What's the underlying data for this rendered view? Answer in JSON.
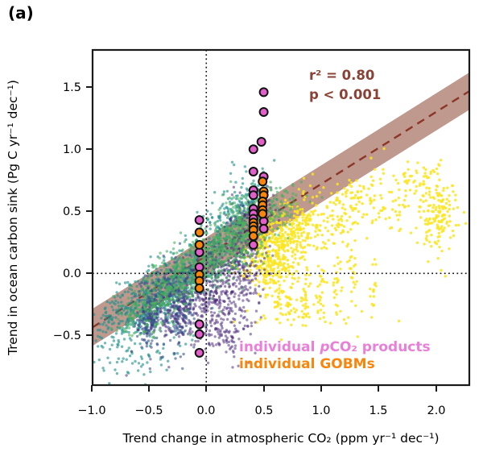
{
  "panel_label": "(a)",
  "chart_data": {
    "type": "scatter",
    "title": "",
    "xlabel": "Trend change in atmospheric CO₂ (ppm yr⁻¹ dec⁻¹)",
    "ylabel": "Trend in ocean carbon sink (Pg C yr⁻¹ dec⁻¹)",
    "xlim": [
      -0.99,
      2.29
    ],
    "ylim": [
      -0.9,
      1.8
    ],
    "xticks": [
      -1.0,
      -0.5,
      0.0,
      0.5,
      1.0,
      1.5,
      2.0
    ],
    "xtick_labels": [
      "−1.0",
      "−0.5",
      "0.0",
      "0.5",
      "1.0",
      "1.5",
      "2.0"
    ],
    "yticks": [
      1.5,
      1.0,
      0.5,
      0.0,
      -0.5
    ],
    "ytick_labels": [
      "1.5",
      "1.0",
      "0.5",
      "0.0",
      "−0.5"
    ],
    "grid": false,
    "zero_lines": {
      "x": 0,
      "y": 0,
      "style": "dotted",
      "color": "#141414"
    },
    "regression": {
      "slope": 0.58,
      "intercept": 0.14,
      "band_halfwidth": 0.15,
      "r2_label": "r² = 0.80",
      "p_label": "p < 0.001",
      "line_color": "#8b3626",
      "band_color": "#8b4332",
      "band_opacity": 0.55,
      "text_color": "#8b4135"
    },
    "ensembles": [
      {
        "name": "ensemble-yellow",
        "color": "#fce51f",
        "opacity": 0.85,
        "dot_radius": 1.7,
        "blobs": [
          {
            "cx": 0.55,
            "cy": 0.16,
            "sx": 0.12,
            "sy": 0.16,
            "slope": 0.2,
            "n": 360
          },
          {
            "cx": 0.8,
            "cy": 0.33,
            "sx": 0.12,
            "sy": 0.13,
            "slope": 0.2,
            "n": 170
          },
          {
            "cx": 1.12,
            "cy": 0.46,
            "sx": 0.18,
            "sy": 0.14,
            "slope": 0,
            "n": 110
          },
          {
            "cx": 1.55,
            "cy": 0.58,
            "sx": 0.2,
            "sy": 0.14,
            "slope": 0,
            "n": 90
          },
          {
            "cx": 2.03,
            "cy": 0.48,
            "sx": 0.08,
            "sy": 0.18,
            "slope": 0,
            "n": 150
          },
          {
            "cx": 1.85,
            "cy": 0.76,
            "sx": 0.12,
            "sy": 0.07,
            "slope": 0,
            "n": 40
          },
          {
            "cx": 0.63,
            "cy": -0.16,
            "sx": 0.02,
            "sy": 0.16,
            "slope": 0,
            "n": 35
          },
          {
            "cx": 0.73,
            "cy": -0.2,
            "sx": 0.02,
            "sy": 0.14,
            "slope": 0,
            "n": 28
          },
          {
            "cx": 0.86,
            "cy": -0.12,
            "sx": 0.02,
            "sy": 0.18,
            "slope": 0,
            "n": 30
          },
          {
            "cx": 1.0,
            "cy": -0.16,
            "sx": 0.02,
            "sy": 0.16,
            "slope": 0,
            "n": 26
          },
          {
            "cx": 1.14,
            "cy": -0.1,
            "sx": 0.02,
            "sy": 0.14,
            "slope": 0,
            "n": 22
          },
          {
            "cx": 1.28,
            "cy": -0.06,
            "sx": 0.02,
            "sy": 0.14,
            "slope": 0,
            "n": 20
          },
          {
            "cx": 1.46,
            "cy": -0.12,
            "sx": 0.02,
            "sy": 0.13,
            "slope": 0,
            "n": 16
          },
          {
            "cx": 0.95,
            "cy": -0.34,
            "sx": 0.28,
            "sy": 0.08,
            "slope": 0,
            "n": 30
          }
        ]
      },
      {
        "name": "ensemble-teal",
        "color": "#21918c",
        "opacity": 0.62,
        "dot_radius": 1.7,
        "blobs": [
          {
            "cx": -0.62,
            "cy": -0.3,
            "sx": 0.2,
            "sy": 0.13,
            "slope": 0.5,
            "n": 360
          },
          {
            "cx": -0.2,
            "cy": -0.06,
            "sx": 0.15,
            "sy": 0.13,
            "slope": 0.5,
            "n": 260
          },
          {
            "cx": 0.12,
            "cy": 0.3,
            "sx": 0.13,
            "sy": 0.15,
            "slope": 0.6,
            "n": 200
          },
          {
            "cx": 0.38,
            "cy": 0.58,
            "sx": 0.1,
            "sy": 0.13,
            "slope": 0.5,
            "n": 110
          },
          {
            "cx": -0.5,
            "cy": -0.62,
            "sx": 0.2,
            "sy": 0.1,
            "slope": 0.3,
            "n": 60
          }
        ]
      },
      {
        "name": "ensemble-blue",
        "color": "#3b528b",
        "opacity": 0.6,
        "dot_radius": 1.7,
        "blobs": [
          {
            "cx": -0.5,
            "cy": -0.36,
            "sx": 0.055,
            "sy": 0.13,
            "slope": 0,
            "n": 190
          },
          {
            "cx": -0.23,
            "cy": -0.28,
            "sx": 0.06,
            "sy": 0.15,
            "slope": 0,
            "n": 170
          },
          {
            "cx": -0.37,
            "cy": -0.12,
            "sx": 0.08,
            "sy": 0.1,
            "slope": 0.5,
            "n": 90
          }
        ]
      },
      {
        "name": "ensemble-purple",
        "color": "#482878",
        "opacity": 0.52,
        "dot_radius": 1.7,
        "blobs": [
          {
            "cx": 0.08,
            "cy": -0.12,
            "sx": 0.16,
            "sy": 0.2,
            "slope": 0.3,
            "n": 400
          },
          {
            "cx": 0.32,
            "cy": 0.15,
            "sx": 0.1,
            "sy": 0.22,
            "slope": 0.3,
            "n": 240
          },
          {
            "cx": -0.22,
            "cy": -0.32,
            "sx": 0.17,
            "sy": 0.13,
            "slope": 0.3,
            "n": 130
          },
          {
            "cx": 0.18,
            "cy": -0.52,
            "sx": 0.12,
            "sy": 0.1,
            "slope": 0,
            "n": 80
          },
          {
            "cx": 0.46,
            "cy": 0.42,
            "sx": 0.06,
            "sy": 0.12,
            "slope": 0.3,
            "n": 60
          }
        ]
      },
      {
        "name": "ensemble-green",
        "color": "#44b05b",
        "opacity": 0.6,
        "dot_radius": 1.7,
        "blobs": [
          {
            "cx": -0.12,
            "cy": 0.02,
            "sx": 0.22,
            "sy": 0.14,
            "slope": 0.55,
            "n": 450
          },
          {
            "cx": 0.26,
            "cy": 0.3,
            "sx": 0.14,
            "sy": 0.15,
            "slope": 0.5,
            "n": 280
          },
          {
            "cx": 0.55,
            "cy": 0.5,
            "sx": 0.14,
            "sy": 0.12,
            "slope": 0.5,
            "n": 140
          },
          {
            "cx": -0.52,
            "cy": -0.28,
            "sx": 0.14,
            "sy": 0.11,
            "slope": 0.5,
            "n": 110
          }
        ]
      }
    ],
    "highlight_series": [
      {
        "name": "individual pCO₂ products",
        "marker_color": "#e05fc9",
        "edge_color": "#111111",
        "points": [
          [
            0.5,
            1.46
          ],
          [
            0.5,
            1.3
          ],
          [
            0.48,
            1.06
          ],
          [
            0.41,
            1.0
          ],
          [
            0.41,
            0.82
          ],
          [
            0.5,
            0.78
          ],
          [
            0.41,
            0.67
          ],
          [
            0.41,
            0.63
          ],
          [
            0.41,
            0.52
          ],
          [
            0.41,
            0.48
          ],
          [
            0.41,
            0.44
          ],
          [
            0.5,
            0.42
          ],
          [
            0.5,
            0.36
          ],
          [
            0.41,
            0.23
          ],
          [
            -0.06,
            0.43
          ],
          [
            -0.06,
            0.17
          ],
          [
            -0.06,
            0.05
          ],
          [
            -0.06,
            -0.41
          ],
          [
            -0.06,
            -0.49
          ],
          [
            -0.06,
            -0.64
          ]
        ]
      },
      {
        "name": "individual GOBMs",
        "marker_color": "#f8860d",
        "edge_color": "#111111",
        "points": [
          [
            0.49,
            0.74
          ],
          [
            0.5,
            0.66
          ],
          [
            0.5,
            0.63
          ],
          [
            0.49,
            0.58
          ],
          [
            0.49,
            0.55
          ],
          [
            0.49,
            0.51
          ],
          [
            0.49,
            0.48
          ],
          [
            0.41,
            0.41
          ],
          [
            0.41,
            0.38
          ],
          [
            0.41,
            0.35
          ],
          [
            0.41,
            0.3
          ],
          [
            -0.06,
            0.33
          ],
          [
            -0.06,
            0.23
          ],
          [
            -0.06,
            -0.01
          ],
          [
            -0.06,
            -0.06
          ],
          [
            -0.06,
            -0.12
          ]
        ]
      }
    ],
    "legend": {
      "position": "lower right",
      "items": [
        {
          "prefix": "individual ",
          "italic_part": "p",
          "rest": "CO₂ products",
          "color": "#ea7fd9"
        },
        {
          "label": "individual GOBMs",
          "color": "#f8860d"
        }
      ]
    }
  }
}
